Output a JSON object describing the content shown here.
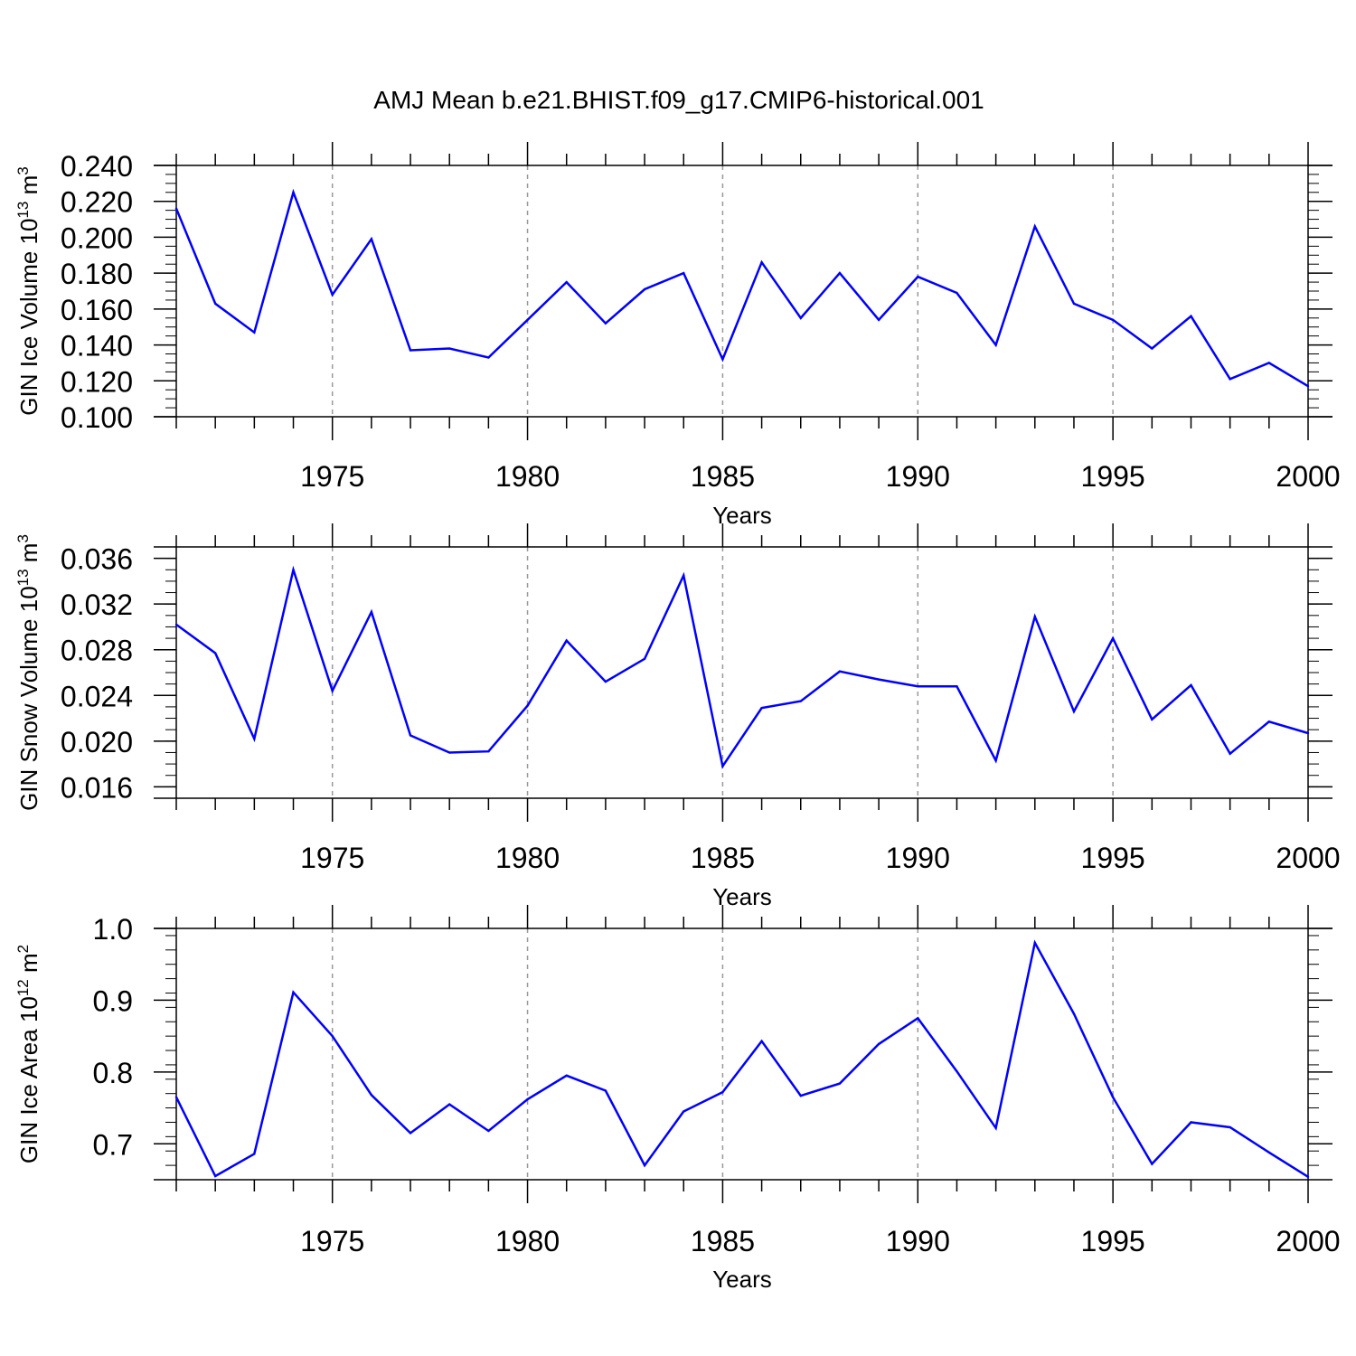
{
  "figure_title": "AMJ Mean b.e21.BHIST.f09_g17.CMIP6-historical.001",
  "colors": {
    "line": "#0000ff",
    "axis": "#000000",
    "grid": "#999999"
  },
  "chart_data": [
    {
      "type": "line",
      "title": "AMJ Mean b.e21.BHIST.f09_g17.CMIP6-historical.001",
      "xlabel": "Years",
      "ylabel": "GIN Ice Volume 10",
      "ylabel_exp": "13",
      "ylabel_unit": " m",
      "ylabel_unit_exp": "3",
      "xlim": [
        1971,
        2000
      ],
      "ylim": [
        0.1,
        0.24
      ],
      "xticks": [
        1975,
        1980,
        1985,
        1990,
        1995,
        2000
      ],
      "yticks": [
        0.1,
        0.12,
        0.14,
        0.16,
        0.18,
        0.2,
        0.22,
        0.24
      ],
      "ytick_labels": [
        "0.100",
        "0.120",
        "0.140",
        "0.160",
        "0.180",
        "0.200",
        "0.220",
        "0.240"
      ],
      "y_minor_step": 0.005,
      "grid": "vertical dashed at major x ticks",
      "x": [
        1971,
        1972,
        1973,
        1974,
        1975,
        1976,
        1977,
        1978,
        1979,
        1980,
        1981,
        1982,
        1983,
        1984,
        1985,
        1986,
        1987,
        1988,
        1989,
        1990,
        1991,
        1992,
        1993,
        1994,
        1995,
        1996,
        1997,
        1998,
        1999,
        2000
      ],
      "values": [
        0.216,
        0.163,
        0.147,
        0.225,
        0.168,
        0.199,
        0.137,
        0.138,
        0.133,
        0.154,
        0.175,
        0.152,
        0.171,
        0.18,
        0.132,
        0.186,
        0.155,
        0.18,
        0.154,
        0.178,
        0.169,
        0.14,
        0.206,
        0.163,
        0.154,
        0.138,
        0.156,
        0.121,
        0.13,
        0.117
      ]
    },
    {
      "type": "line",
      "xlabel": "Years",
      "ylabel": "GIN Snow Volume 10",
      "ylabel_exp": "13",
      "ylabel_unit": " m",
      "ylabel_unit_exp": "3",
      "xlim": [
        1971,
        2000
      ],
      "ylim": [
        0.015,
        0.037
      ],
      "xticks": [
        1975,
        1980,
        1985,
        1990,
        1995,
        2000
      ],
      "yticks": [
        0.016,
        0.02,
        0.024,
        0.028,
        0.032,
        0.036
      ],
      "ytick_labels": [
        "0.016",
        "0.020",
        "0.024",
        "0.028",
        "0.032",
        "0.036"
      ],
      "y_minor_step": 0.001,
      "grid": "vertical dashed at major x ticks",
      "x": [
        1971,
        1972,
        1973,
        1974,
        1975,
        1976,
        1977,
        1978,
        1979,
        1980,
        1981,
        1982,
        1983,
        1984,
        1985,
        1986,
        1987,
        1988,
        1989,
        1990,
        1991,
        1992,
        1993,
        1994,
        1995,
        1996,
        1997,
        1998,
        1999,
        2000
      ],
      "values": [
        0.0302,
        0.0277,
        0.0202,
        0.035,
        0.0244,
        0.0313,
        0.0205,
        0.019,
        0.0191,
        0.0231,
        0.0288,
        0.0252,
        0.0272,
        0.0345,
        0.0178,
        0.0229,
        0.0235,
        0.0261,
        0.0254,
        0.0248,
        0.0248,
        0.0183,
        0.0309,
        0.0226,
        0.029,
        0.0219,
        0.0249,
        0.0189,
        0.0217,
        0.0207
      ]
    },
    {
      "type": "line",
      "xlabel": "Years",
      "ylabel": "GIN Ice Area 10",
      "ylabel_exp": "12",
      "ylabel_unit": " m",
      "ylabel_unit_exp": "2",
      "xlim": [
        1971,
        2000
      ],
      "ylim": [
        0.65,
        1.0
      ],
      "xticks": [
        1975,
        1980,
        1985,
        1990,
        1995,
        2000
      ],
      "yticks": [
        0.7,
        0.8,
        0.9,
        1.0
      ],
      "ytick_labels": [
        "0.7",
        "0.8",
        "0.9",
        "1.0"
      ],
      "y_minor_step": 0.02,
      "grid": "vertical dashed at major x ticks",
      "x": [
        1971,
        1972,
        1973,
        1974,
        1975,
        1976,
        1977,
        1978,
        1979,
        1980,
        1981,
        1982,
        1983,
        1984,
        1985,
        1986,
        1987,
        1988,
        1989,
        1990,
        1991,
        1992,
        1993,
        1994,
        1995,
        1996,
        1997,
        1998,
        1999,
        2000
      ],
      "values": [
        0.765,
        0.655,
        0.686,
        0.911,
        0.85,
        0.768,
        0.715,
        0.755,
        0.718,
        0.762,
        0.795,
        0.774,
        0.67,
        0.745,
        0.772,
        0.843,
        0.767,
        0.784,
        0.839,
        0.875,
        0.801,
        0.722,
        0.98,
        0.881,
        0.765,
        0.672,
        0.73,
        0.723,
        0.688,
        0.654
      ]
    }
  ]
}
